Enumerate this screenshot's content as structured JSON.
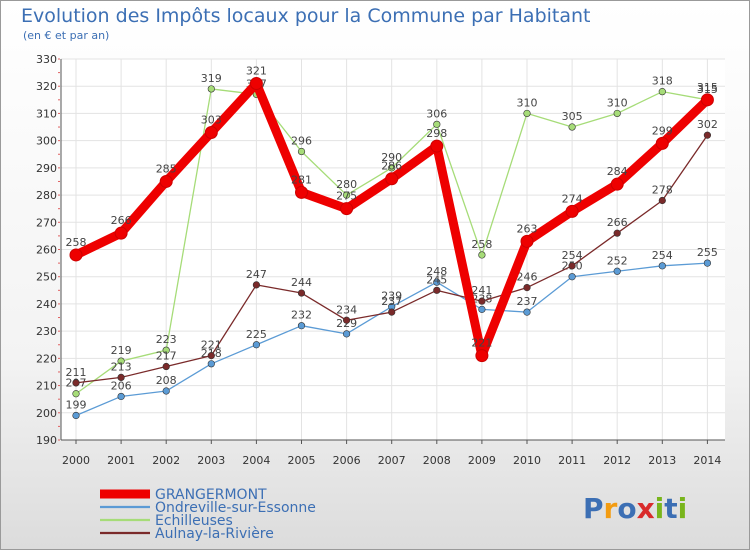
{
  "header": {
    "title": "Evolution des Impôts locaux pour la Commune par Habitant",
    "subtitle": "(en € et par an)"
  },
  "brand": {
    "letters": [
      "P",
      "r",
      "o",
      "x",
      "i",
      "t",
      "i"
    ],
    "colors": [
      "#3c6fb4",
      "#f39c12",
      "#3c6fb4",
      "#d92b2b",
      "#79b51c",
      "#3c6fb4",
      "#79b51c"
    ]
  },
  "chart_data": {
    "type": "line",
    "title": "Evolution des Impôts locaux pour la Commune par Habitant",
    "subtitle": "(en € et par an)",
    "xlabel": "",
    "ylabel": "",
    "ylim": [
      190,
      330
    ],
    "yticks": [
      190,
      200,
      210,
      220,
      230,
      240,
      250,
      260,
      270,
      280,
      290,
      300,
      310,
      320,
      330
    ],
    "categories": [
      "2000",
      "2001",
      "2002",
      "2003",
      "2004",
      "2005",
      "2006",
      "2007",
      "2008",
      "2009",
      "2010",
      "2011",
      "2012",
      "2013",
      "2014"
    ],
    "grid": true,
    "legend_position": "bottom-left",
    "series": [
      {
        "name": "GRANGERMONT",
        "color": "#ee0000",
        "bold": true,
        "values": [
          258,
          266,
          285,
          303,
          321,
          281,
          275,
          286,
          298,
          221,
          263,
          274,
          284,
          299,
          315
        ]
      },
      {
        "name": "Ondreville-sur-Essonne",
        "color": "#5b9bd5",
        "values": [
          199,
          206,
          208,
          218,
          225,
          232,
          229,
          239,
          248,
          238,
          237,
          250,
          252,
          254,
          255
        ]
      },
      {
        "name": "Echilleuses",
        "color": "#a6dc78",
        "values": [
          207,
          219,
          223,
          319,
          317,
          296,
          280,
          290,
          306,
          258,
          310,
          305,
          310,
          318,
          315
        ]
      },
      {
        "name": "Aulnay-la-Rivière",
        "color": "#7a2a2a",
        "values": [
          211,
          213,
          217,
          221,
          247,
          244,
          234,
          237,
          245,
          241,
          246,
          254,
          266,
          278,
          302
        ]
      }
    ]
  }
}
